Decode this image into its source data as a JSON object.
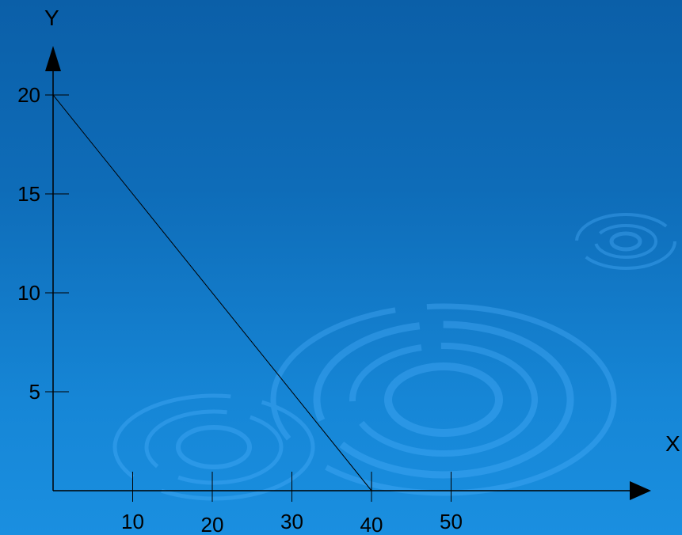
{
  "chart_data": {
    "type": "line",
    "title": "",
    "xlabel": "X",
    "ylabel": "Y",
    "xlim": [
      0,
      60
    ],
    "ylim": [
      0,
      22
    ],
    "x_ticks": [
      10,
      20,
      30,
      40,
      50
    ],
    "y_ticks": [
      5,
      10,
      15,
      20
    ],
    "grid": false,
    "series": [
      {
        "x": [
          0,
          40
        ],
        "y": [
          20,
          0
        ]
      }
    ],
    "colors": {
      "background_top": "#0b5fa8",
      "background_bottom": "#1a8fe0",
      "axis": "#000000",
      "line": "#000000",
      "ripple": "#4fb2ff"
    }
  }
}
